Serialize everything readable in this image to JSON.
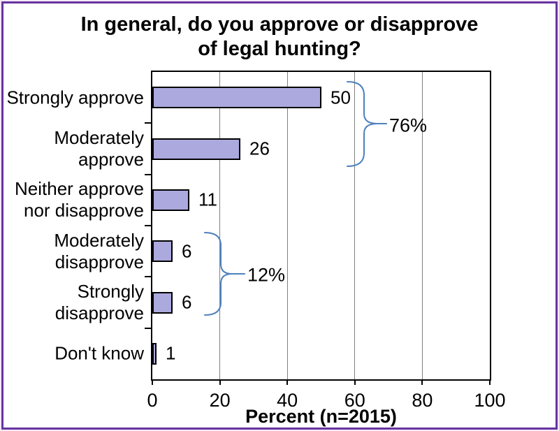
{
  "title": "In general, do you approve or disapprove\nof legal hunting?",
  "chart_data": {
    "type": "bar",
    "orientation": "horizontal",
    "categories": [
      "Strongly approve",
      "Moderately\napprove",
      "Neither approve\nnor disapprove",
      "Moderately\ndisapprove",
      "Strongly\ndisapprove",
      "Don't know"
    ],
    "values": [
      50,
      26,
      11,
      6,
      6,
      1
    ],
    "value_labels": [
      "50",
      "26",
      "11",
      "6",
      "6",
      "1"
    ],
    "xlabel": "Percent (n=2015)",
    "xlim": [
      0,
      100
    ],
    "xticks": [
      0,
      20,
      40,
      60,
      80,
      100
    ],
    "gridline_values": [
      20,
      40,
      60,
      80
    ],
    "grid": "vertical",
    "legend": "none",
    "annotations": [
      {
        "label": "76%",
        "from_index": 0,
        "to_index": 1
      },
      {
        "label": "12%",
        "from_index": 3,
        "to_index": 4
      }
    ]
  },
  "colors": {
    "background": "#FFFFFF",
    "text": "#000000",
    "bar_fill": "#ABA9DD",
    "bar_border": "#000000",
    "plot_border": "#000000",
    "gridline": "#808080",
    "bracket": "#4F81BD",
    "frame_border": "#6633A0",
    "frame_edge": "#F5E8F7"
  }
}
